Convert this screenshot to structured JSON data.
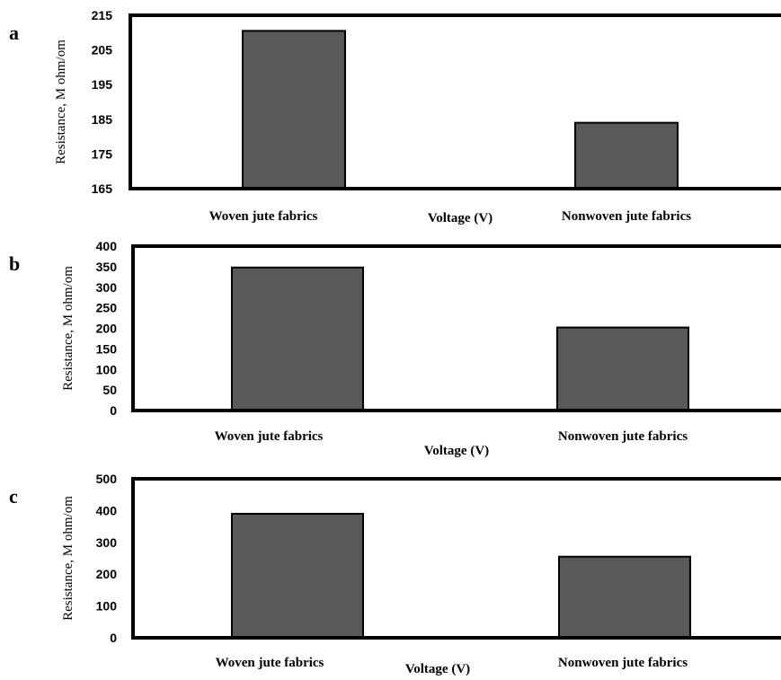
{
  "colors": {
    "bar": "#595959",
    "bar_stroke": "#000000",
    "axis": "#000000"
  },
  "chart_data": [
    {
      "type": "bar",
      "panel": "a",
      "categories": [
        "Woven jute fabrics",
        "Nonwoven jute fabrics"
      ],
      "values": [
        210.5,
        184
      ],
      "xlabel": "Voltage (V)",
      "ylabel": "Resistance, M ohm/om",
      "ylim": [
        165,
        215
      ],
      "yticks": [
        165,
        175,
        185,
        195,
        205,
        215
      ],
      "grid": false
    },
    {
      "type": "bar",
      "panel": "b",
      "categories": [
        "Woven jute fabrics",
        "Nonwoven jute fabrics"
      ],
      "values": [
        348,
        202
      ],
      "xlabel": "Voltage (V)",
      "ylabel": "Resistance, M ohm/om",
      "ylim": [
        0,
        400
      ],
      "yticks": [
        0,
        50,
        100,
        150,
        200,
        250,
        300,
        350,
        400
      ],
      "grid": false
    },
    {
      "type": "bar",
      "panel": "c",
      "categories": [
        "Woven jute fabrics",
        "Nonwoven jute fabrics"
      ],
      "values": [
        390,
        255
      ],
      "xlabel": "Voltage (V)",
      "ylabel": "Resistance, M ohm/om",
      "ylim": [
        0,
        500
      ],
      "yticks": [
        0,
        100,
        200,
        300,
        400,
        500
      ],
      "grid": false
    }
  ]
}
